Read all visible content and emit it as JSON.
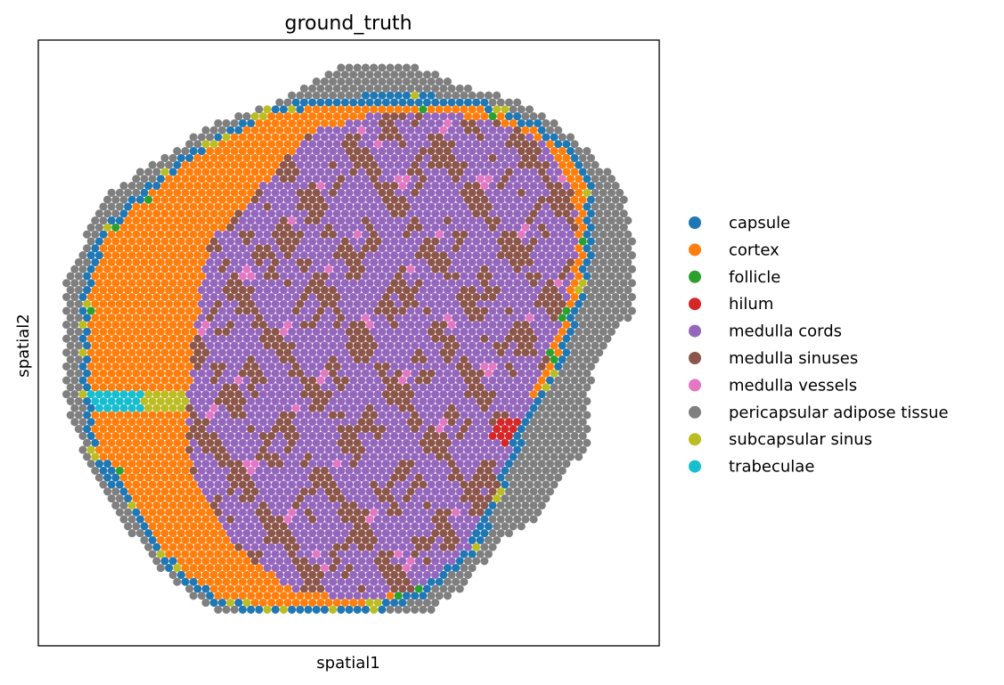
{
  "chart_data": {
    "type": "scatter",
    "title": "ground_truth",
    "xlabel": "spatial1",
    "ylabel": "spatial2",
    "grid": false,
    "legend_position": "right",
    "x_ticks": [],
    "y_ticks": [],
    "legend": [
      {
        "name": "capsule",
        "color": "#1f77b4"
      },
      {
        "name": "cortex",
        "color": "#ff7f0e"
      },
      {
        "name": "follicle",
        "color": "#2ca02c"
      },
      {
        "name": "hilum",
        "color": "#d62728"
      },
      {
        "name": "medulla cords",
        "color": "#9467bd"
      },
      {
        "name": "medulla sinuses",
        "color": "#8c564b"
      },
      {
        "name": "medulla vessels",
        "color": "#e377c2"
      },
      {
        "name": "pericapsular adipose tissue",
        "color": "#7f7f7f"
      },
      {
        "name": "subcapsular sinus",
        "color": "#bcbd22"
      },
      {
        "name": "trabeculae",
        "color": "#17becf"
      }
    ]
  }
}
